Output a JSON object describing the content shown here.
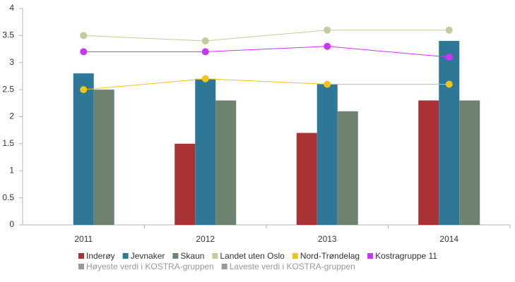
{
  "chart_data": {
    "type": "bar",
    "categories": [
      "2011",
      "2012",
      "2013",
      "2014"
    ],
    "ylim": [
      0,
      4
    ],
    "yticks": [
      0,
      0.5,
      1,
      1.5,
      2,
      2.5,
      3,
      3.5,
      4
    ],
    "grid": false,
    "legend": "bottom",
    "series": [
      {
        "name": "Inderøy",
        "type": "bar",
        "color": "#a83234",
        "values": [
          null,
          1.5,
          1.7,
          2.3
        ]
      },
      {
        "name": "Jevnaker",
        "type": "bar",
        "color": "#2e7797",
        "values": [
          2.8,
          2.7,
          2.6,
          3.4
        ]
      },
      {
        "name": "Skaun",
        "type": "bar",
        "color": "#6e8270",
        "values": [
          2.5,
          2.3,
          2.1,
          2.3
        ]
      },
      {
        "name": "Landet uten Oslo",
        "type": "line",
        "color": "#c5cc9a",
        "values": [
          3.5,
          3.4,
          3.6,
          3.6
        ]
      },
      {
        "name": "Nord-Trøndelag",
        "type": "line",
        "color": "#f0c419",
        "values": [
          2.5,
          2.7,
          2.6,
          2.6
        ]
      },
      {
        "name": "Kostragruppe 11",
        "type": "line",
        "color": "#cc33ff",
        "values": [
          3.2,
          3.2,
          3.3,
          3.1
        ]
      },
      {
        "name": "Høyeste verdi i KOSTRA-gruppen",
        "type": "line",
        "color": "#999999",
        "visible": false,
        "values": [
          null,
          null,
          null,
          null
        ]
      },
      {
        "name": "Laveste verdi i KOSTRA-gruppen",
        "type": "line",
        "color": "#999999",
        "visible": false,
        "values": [
          null,
          null,
          null,
          null
        ]
      }
    ]
  }
}
